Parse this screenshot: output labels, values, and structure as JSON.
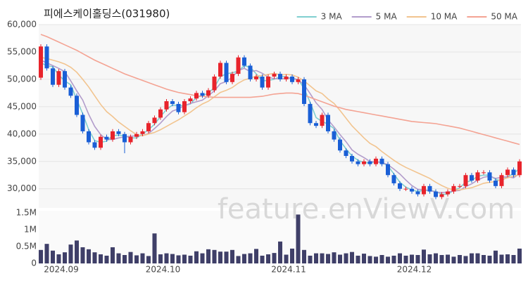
{
  "chart_data": [
    {
      "type": "candlestick",
      "title": "피에스케이홀딩스(031980)",
      "watermark": "feature.enViewV.com",
      "up_color": "#e8232b",
      "down_color": "#1a5fd6",
      "grid": true,
      "legend": "top-right",
      "open": [
        50300,
        56000,
        52000,
        49000,
        51500,
        48500,
        47000,
        43500,
        40500,
        38500,
        37500,
        39500,
        39000,
        40500,
        40000,
        38500,
        39500,
        40000,
        40500,
        42000,
        43000,
        44500,
        46000,
        45500,
        44000,
        46000,
        46500,
        47500,
        47000,
        48000,
        50500,
        53000,
        49500,
        51000,
        54000,
        52500,
        50000,
        50500,
        48500,
        50500,
        51000,
        50000,
        50500,
        49500,
        50000,
        45500,
        42000,
        41500,
        43500,
        40500,
        39000,
        37000,
        36000,
        35000,
        34500,
        35000,
        34500,
        35500,
        34500,
        32500,
        31000,
        30000,
        30000,
        29500,
        29000,
        30500,
        29500,
        28500,
        29000,
        29500,
        30500,
        30500,
        32500,
        31500,
        33000,
        33000,
        31500,
        30500,
        32500,
        33500,
        32500
      ],
      "high": [
        56400,
        56400,
        52400,
        51900,
        51900,
        48900,
        47400,
        43900,
        40900,
        38900,
        39900,
        39900,
        40900,
        40900,
        40400,
        39900,
        40400,
        40900,
        42400,
        43400,
        44900,
        46400,
        46400,
        45900,
        46400,
        46900,
        47900,
        47900,
        48400,
        50900,
        53400,
        53400,
        51400,
        54400,
        54400,
        52900,
        50900,
        50900,
        50900,
        51400,
        51400,
        50900,
        50900,
        50400,
        50400,
        45900,
        42400,
        43900,
        43900,
        40900,
        39400,
        37400,
        36400,
        35400,
        35400,
        35400,
        35900,
        35900,
        34900,
        32900,
        31400,
        30400,
        30400,
        29900,
        30900,
        30900,
        29900,
        29400,
        29900,
        30900,
        30900,
        32900,
        32900,
        33400,
        33400,
        33400,
        31900,
        32900,
        33900,
        33900,
        35400
      ],
      "low": [
        49900,
        51600,
        48600,
        48600,
        48100,
        46600,
        43100,
        40100,
        38100,
        37100,
        37100,
        38600,
        38600,
        39600,
        36500,
        38100,
        39100,
        39600,
        40100,
        41600,
        42600,
        44100,
        45100,
        43600,
        43600,
        45600,
        46100,
        46600,
        46600,
        47600,
        50100,
        49100,
        49100,
        50600,
        52100,
        49600,
        49600,
        48100,
        48100,
        50100,
        49600,
        49600,
        49100,
        49100,
        45100,
        41600,
        41100,
        41100,
        40100,
        38600,
        36600,
        35600,
        34600,
        34100,
        34100,
        34100,
        34100,
        34100,
        32100,
        30600,
        29600,
        29600,
        29100,
        28600,
        28600,
        29100,
        28100,
        28100,
        28600,
        29100,
        30100,
        30100,
        31100,
        31100,
        32600,
        31100,
        30100,
        30100,
        32100,
        32100,
        32100
      ],
      "close": [
        56000,
        52000,
        49000,
        51500,
        48500,
        47000,
        43500,
        40500,
        38500,
        37500,
        39500,
        39000,
        40500,
        40000,
        38500,
        39500,
        40000,
        40500,
        42000,
        43000,
        44500,
        46000,
        45500,
        44000,
        46000,
        46500,
        47500,
        47000,
        48000,
        50500,
        53000,
        49500,
        51000,
        54000,
        52500,
        50000,
        50500,
        48500,
        50500,
        51000,
        50000,
        50500,
        49500,
        50000,
        45500,
        42000,
        41500,
        43500,
        40500,
        39000,
        37000,
        36000,
        35000,
        34500,
        35000,
        34500,
        35500,
        34500,
        32500,
        31000,
        30000,
        30000,
        29500,
        29000,
        30500,
        29500,
        28500,
        29000,
        29500,
        30500,
        30500,
        32500,
        31500,
        33000,
        33000,
        31500,
        30500,
        32500,
        33500,
        32500,
        35000
      ],
      "series": [
        {
          "name": "3 MA",
          "color": "#7fcfd0",
          "values": [
            53000,
            52500,
            52300,
            50800,
            49700,
            49000,
            46300,
            43700,
            40800,
            38800,
            38500,
            38700,
            39700,
            39800,
            39700,
            39300,
            39300,
            40000,
            40800,
            41800,
            43200,
            44500,
            45300,
            45200,
            45200,
            45500,
            46700,
            47000,
            47500,
            48500,
            50500,
            51000,
            51200,
            51500,
            52500,
            52200,
            51000,
            49700,
            49800,
            50000,
            50500,
            50500,
            50000,
            50000,
            48300,
            45800,
            43000,
            42300,
            41800,
            41000,
            38800,
            37300,
            36000,
            35200,
            34800,
            34700,
            35000,
            34800,
            34200,
            32700,
            31200,
            30300,
            29800,
            29500,
            29700,
            29700,
            29500,
            29000,
            29000,
            29700,
            30200,
            31200,
            31500,
            32300,
            32500,
            32500,
            31700,
            31500,
            32200,
            32800,
            33700
          ]
        },
        {
          "name": "5 MA",
          "color": "#b29ccb",
          "values": [
            53500,
            53000,
            52500,
            52000,
            51400,
            49700,
            47900,
            46200,
            43600,
            41400,
            39900,
            39000,
            39000,
            39300,
            39500,
            39600,
            39700,
            39700,
            40100,
            41000,
            42000,
            43200,
            44200,
            44600,
            45200,
            45600,
            45900,
            46200,
            47000,
            47900,
            49200,
            49600,
            50400,
            51600,
            52000,
            51400,
            51600,
            51100,
            50400,
            50100,
            50100,
            50100,
            50300,
            49900,
            49000,
            47400,
            45700,
            44500,
            42600,
            41300,
            39900,
            38600,
            37100,
            36300,
            35700,
            35000,
            34900,
            34800,
            34400,
            33600,
            32700,
            31600,
            30600,
            29900,
            29800,
            29700,
            29400,
            29300,
            29400,
            29600,
            29700,
            30400,
            30900,
            31600,
            32100,
            32300,
            31900,
            32100,
            32200,
            32000,
            32800
          ]
        },
        {
          "name": "10 MA",
          "color": "#f2c48f",
          "values": [
            54000,
            53800,
            53500,
            53200,
            52800,
            52200,
            51300,
            50000,
            48600,
            47000,
            45400,
            44100,
            43200,
            42200,
            41400,
            40600,
            39900,
            39700,
            40000,
            40300,
            40800,
            41400,
            42000,
            42600,
            43300,
            44000,
            44800,
            45500,
            46000,
            46800,
            47600,
            48000,
            48500,
            49300,
            49900,
            50200,
            50600,
            50700,
            50900,
            51100,
            50800,
            50900,
            50800,
            50400,
            49700,
            48800,
            47900,
            47400,
            46400,
            45600,
            44300,
            42900,
            41500,
            40400,
            39300,
            38300,
            37700,
            36800,
            36000,
            35200,
            34500,
            33900,
            33400,
            32900,
            32400,
            31900,
            31200,
            30600,
            30100,
            29800,
            29800,
            30000,
            30200,
            30600,
            31000,
            31200,
            31300,
            31700,
            32000,
            32300,
            32600
          ]
        },
        {
          "name": "50 MA",
          "color": "#f4a393",
          "values": [
            58200,
            57800,
            57300,
            56800,
            56300,
            55800,
            55300,
            54700,
            54100,
            53500,
            53000,
            52500,
            52000,
            51500,
            51000,
            50600,
            50200,
            49800,
            49400,
            49000,
            48600,
            48200,
            47900,
            47600,
            47400,
            47200,
            47000,
            46900,
            46800,
            46700,
            46700,
            46700,
            46700,
            46700,
            46700,
            46700,
            46800,
            46900,
            47100,
            47300,
            47400,
            47500,
            47500,
            47400,
            47100,
            46700,
            46300,
            45900,
            45500,
            45100,
            44800,
            44500,
            44300,
            44100,
            43900,
            43700,
            43500,
            43300,
            43100,
            42900,
            42700,
            42500,
            42300,
            42200,
            42100,
            42000,
            41900,
            41700,
            41500,
            41300,
            41100,
            40800,
            40500,
            40200,
            39900,
            39600,
            39300,
            39000,
            38700,
            38400,
            38100
          ]
        }
      ],
      "ylim": [
        26500,
        60000
      ],
      "yticks": [
        {
          "value": 30000,
          "label": "30,000"
        },
        {
          "value": 35000,
          "label": "35,000"
        },
        {
          "value": 40000,
          "label": "40,000"
        },
        {
          "value": 45000,
          "label": "45,000"
        },
        {
          "value": 50000,
          "label": "50,000"
        },
        {
          "value": 55000,
          "label": "55,000"
        },
        {
          "value": 60000,
          "label": "60,000"
        }
      ]
    },
    {
      "type": "bar",
      "color": "#3f3f68",
      "categories": [
        null,
        null,
        null,
        null,
        "2024.09",
        null,
        null,
        null,
        null,
        null,
        null,
        null,
        null,
        null,
        null,
        null,
        null,
        null,
        null,
        null,
        null,
        "2024.10",
        null,
        null,
        null,
        null,
        null,
        null,
        null,
        null,
        null,
        null,
        null,
        null,
        null,
        null,
        null,
        null,
        null,
        null,
        null,
        null,
        "2024.11",
        null,
        null,
        null,
        null,
        null,
        null,
        null,
        null,
        null,
        null,
        null,
        null,
        null,
        null,
        null,
        null,
        null,
        null,
        null,
        null,
        "2024.12",
        null,
        null,
        null,
        null,
        null,
        null,
        null,
        null,
        null,
        null,
        null,
        null,
        null,
        null,
        null,
        null,
        null
      ],
      "values": [
        400000,
        580000,
        380000,
        270000,
        330000,
        560000,
        680000,
        480000,
        420000,
        330000,
        270000,
        230000,
        480000,
        300000,
        250000,
        340000,
        240000,
        300000,
        220000,
        890000,
        270000,
        300000,
        280000,
        240000,
        260000,
        230000,
        360000,
        300000,
        420000,
        400000,
        350000,
        350000,
        400000,
        220000,
        280000,
        300000,
        430000,
        230000,
        270000,
        310000,
        650000,
        260000,
        440000,
        1450000,
        400000,
        230000,
        300000,
        300000,
        280000,
        330000,
        260000,
        300000,
        340000,
        230000,
        290000,
        220000,
        200000,
        250000,
        200000,
        230000,
        300000,
        230000,
        260000,
        250000,
        410000,
        270000,
        300000,
        250000,
        260000,
        200000,
        250000,
        220000,
        300000,
        300000,
        250000,
        230000,
        380000,
        260000,
        270000,
        250000,
        440000
      ],
      "ylim": [
        0,
        1500000
      ],
      "yticks": [
        0,
        {
          "value": 500000,
          "label": "0.5M"
        },
        {
          "value": 1000000,
          "label": "1M"
        },
        {
          "value": 1500000,
          "label": "1.5M"
        }
      ]
    }
  ]
}
